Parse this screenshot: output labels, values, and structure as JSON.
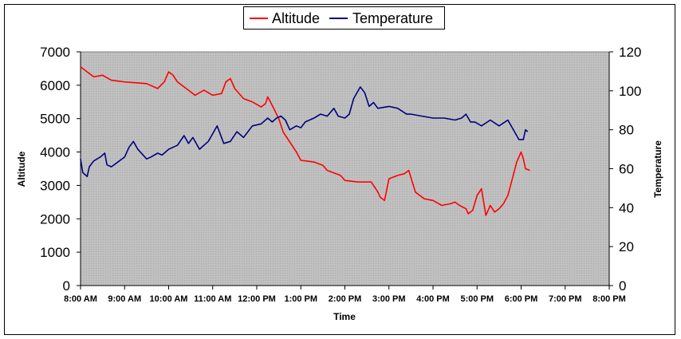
{
  "chart_data": {
    "type": "line",
    "xlabel": "Time",
    "ylabel_left": "Altitude",
    "ylabel_right": "Temperature",
    "x_ticks": [
      "8:00 AM",
      "9:00 AM",
      "10:00 AM",
      "11:00 AM",
      "12:00 PM",
      "1:00 PM",
      "2:00 PM",
      "3:00 PM",
      "4:00 PM",
      "5:00 PM",
      "6:00 PM",
      "7:00 PM",
      "8:00 PM"
    ],
    "x_range_hours": [
      8,
      20
    ],
    "y_left_range": [
      0,
      7000
    ],
    "y_left_ticks": [
      "0",
      "1000",
      "2000",
      "3000",
      "4000",
      "5000",
      "6000",
      "7000"
    ],
    "y_right_range": [
      0,
      120
    ],
    "y_right_ticks": [
      "0",
      "20",
      "40",
      "60",
      "80",
      "100",
      "120"
    ],
    "legend_position": "top-center",
    "grid": false,
    "plot_background": "#c0c0c0",
    "series": [
      {
        "name": "Altitude",
        "axis": "left",
        "color": "#ff0000",
        "x": [
          8.0,
          8.1,
          8.3,
          8.5,
          8.7,
          9.0,
          9.5,
          9.75,
          9.9,
          10.0,
          10.1,
          10.2,
          10.4,
          10.5,
          10.6,
          10.8,
          11.0,
          11.2,
          11.3,
          11.4,
          11.5,
          11.7,
          11.9,
          12.1,
          12.2,
          12.25,
          12.35,
          12.5,
          12.6,
          12.75,
          12.9,
          13.0,
          13.3,
          13.5,
          13.6,
          13.9,
          14.0,
          14.3,
          14.5,
          14.6,
          14.75,
          14.8,
          14.9,
          15.0,
          15.2,
          15.35,
          15.45,
          15.6,
          15.8,
          16.0,
          16.2,
          16.4,
          16.5,
          16.6,
          16.75,
          16.8,
          16.9,
          17.0,
          17.1,
          17.2,
          17.3,
          17.4,
          17.5,
          17.6,
          17.7,
          17.8,
          17.9,
          18.0,
          18.05,
          18.1,
          18.2
        ],
        "values": [
          6550,
          6450,
          6250,
          6300,
          6150,
          6100,
          6050,
          5900,
          6100,
          6400,
          6300,
          6100,
          5900,
          5800,
          5700,
          5850,
          5700,
          5750,
          6100,
          6200,
          5900,
          5600,
          5500,
          5350,
          5450,
          5650,
          5400,
          5000,
          4600,
          4300,
          4000,
          3750,
          3700,
          3600,
          3450,
          3300,
          3150,
          3100,
          3100,
          3100,
          2800,
          2650,
          2550,
          3200,
          3300,
          3350,
          3450,
          2800,
          2600,
          2550,
          2400,
          2450,
          2500,
          2400,
          2300,
          2150,
          2250,
          2700,
          2900,
          2100,
          2400,
          2200,
          2300,
          2450,
          2700,
          3200,
          3700,
          4000,
          3800,
          3500,
          3450
        ]
      },
      {
        "name": "Temperature",
        "axis": "right",
        "color": "#000080",
        "x": [
          8.0,
          8.05,
          8.15,
          8.2,
          8.3,
          8.45,
          8.55,
          8.6,
          8.7,
          9.0,
          9.1,
          9.2,
          9.3,
          9.5,
          9.6,
          9.75,
          9.85,
          10.0,
          10.2,
          10.35,
          10.45,
          10.55,
          10.7,
          10.9,
          11.0,
          11.1,
          11.25,
          11.4,
          11.55,
          11.7,
          11.9,
          12.1,
          12.25,
          12.35,
          12.45,
          12.55,
          12.65,
          12.75,
          12.9,
          13.0,
          13.1,
          13.3,
          13.45,
          13.6,
          13.75,
          13.85,
          14.0,
          14.1,
          14.2,
          14.35,
          14.45,
          14.55,
          14.65,
          14.75,
          15.0,
          15.2,
          15.4,
          15.5,
          15.75,
          16.0,
          16.25,
          16.5,
          16.65,
          16.75,
          16.85,
          16.95,
          17.1,
          17.3,
          17.5,
          17.7,
          17.85,
          17.95,
          18.05,
          18.1,
          18.15
        ],
        "values": [
          65,
          58,
          56,
          61,
          64,
          66,
          68,
          62,
          61,
          66,
          71,
          74,
          70,
          65,
          66,
          68,
          67,
          70,
          72,
          77,
          73,
          76,
          70,
          74,
          78,
          82,
          73,
          74,
          79,
          76,
          82,
          83,
          86,
          84,
          86,
          87,
          85,
          80,
          82,
          81,
          84,
          86,
          88,
          87,
          91,
          87,
          86,
          88,
          96,
          102,
          99,
          92,
          94,
          91,
          92,
          91,
          88,
          88,
          87,
          86,
          86,
          85,
          86,
          88,
          84,
          84,
          82,
          85,
          82,
          85,
          79,
          75,
          75,
          80,
          79
        ]
      }
    ]
  }
}
